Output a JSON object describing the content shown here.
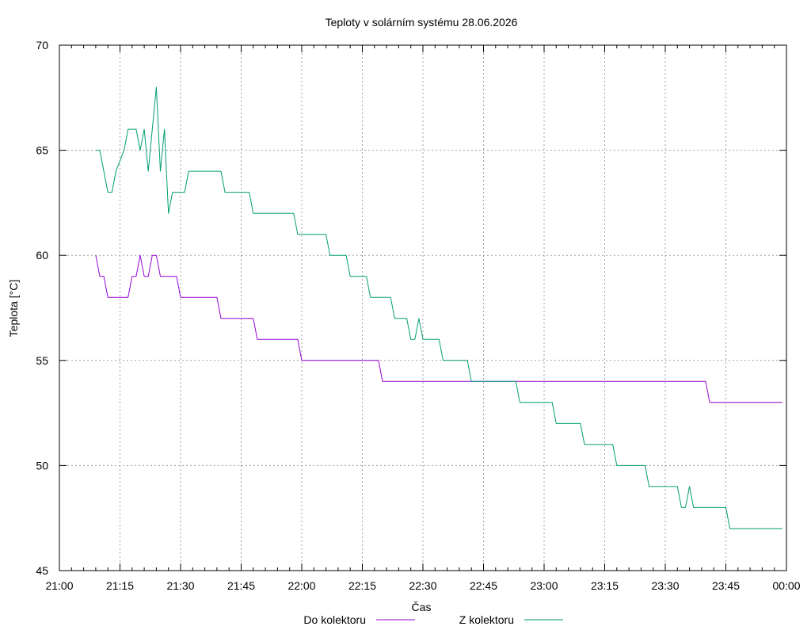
{
  "chart_data": {
    "type": "line",
    "title": "Teploty v solárním systému 28.06.2026",
    "xlabel": "Čas",
    "ylabel": "Teplota [°C]",
    "xlim": [
      "21:00",
      "00:00"
    ],
    "ylim": [
      45,
      70
    ],
    "grid": true,
    "legend_position": "bottom",
    "x_ticks": [
      "21:00",
      "21:15",
      "21:30",
      "21:45",
      "22:00",
      "22:15",
      "22:30",
      "22:45",
      "23:00",
      "23:15",
      "23:30",
      "23:45",
      "00:00"
    ],
    "y_ticks": [
      "45",
      "50",
      "55",
      "60",
      "65",
      "70"
    ],
    "series": [
      {
        "name": "Do kolektoru",
        "color": "#9400d3",
        "points": [
          [
            "21:09",
            60
          ],
          [
            "21:10",
            59
          ],
          [
            "21:11",
            59
          ],
          [
            "21:12",
            58
          ],
          [
            "21:17",
            58
          ],
          [
            "21:18",
            59
          ],
          [
            "21:19",
            59
          ],
          [
            "21:20",
            60
          ],
          [
            "21:21",
            59
          ],
          [
            "21:22",
            59
          ],
          [
            "21:23",
            60
          ],
          [
            "21:24",
            60
          ],
          [
            "21:25",
            59
          ],
          [
            "21:29",
            59
          ],
          [
            "21:30",
            58
          ],
          [
            "21:39",
            58
          ],
          [
            "21:40",
            57
          ],
          [
            "21:48",
            57
          ],
          [
            "21:49",
            56
          ],
          [
            "21:59",
            56
          ],
          [
            "22:00",
            55
          ],
          [
            "22:19",
            55
          ],
          [
            "22:20",
            54
          ],
          [
            "23:40",
            54
          ],
          [
            "23:41",
            53
          ],
          [
            "23:59",
            53
          ]
        ]
      },
      {
        "name": "Z kolektoru",
        "color": "#009e73",
        "points": [
          [
            "21:09",
            65
          ],
          [
            "21:10",
            65
          ],
          [
            "21:12",
            63
          ],
          [
            "21:13",
            63
          ],
          [
            "21:14",
            64
          ],
          [
            "21:16",
            65
          ],
          [
            "21:17",
            66
          ],
          [
            "21:19",
            66
          ],
          [
            "21:20",
            65
          ],
          [
            "21:21",
            66
          ],
          [
            "21:22",
            64
          ],
          [
            "21:24",
            68
          ],
          [
            "21:25",
            64
          ],
          [
            "21:26",
            66
          ],
          [
            "21:27",
            62
          ],
          [
            "21:28",
            63
          ],
          [
            "21:31",
            63
          ],
          [
            "21:32",
            64
          ],
          [
            "21:40",
            64
          ],
          [
            "21:41",
            63
          ],
          [
            "21:47",
            63
          ],
          [
            "21:48",
            62
          ],
          [
            "21:58",
            62
          ],
          [
            "21:59",
            61
          ],
          [
            "22:06",
            61
          ],
          [
            "22:07",
            60
          ],
          [
            "22:11",
            60
          ],
          [
            "22:12",
            59
          ],
          [
            "22:16",
            59
          ],
          [
            "22:17",
            58
          ],
          [
            "22:22",
            58
          ],
          [
            "22:23",
            57
          ],
          [
            "22:26",
            57
          ],
          [
            "22:27",
            56
          ],
          [
            "22:28",
            56
          ],
          [
            "22:29",
            57
          ],
          [
            "22:30",
            56
          ],
          [
            "22:34",
            56
          ],
          [
            "22:35",
            55
          ],
          [
            "22:41",
            55
          ],
          [
            "22:42",
            54
          ],
          [
            "22:53",
            54
          ],
          [
            "22:54",
            53
          ],
          [
            "23:02",
            53
          ],
          [
            "23:03",
            52
          ],
          [
            "23:09",
            52
          ],
          [
            "23:10",
            51
          ],
          [
            "23:17",
            51
          ],
          [
            "23:18",
            50
          ],
          [
            "23:25",
            50
          ],
          [
            "23:26",
            49
          ],
          [
            "23:33",
            49
          ],
          [
            "23:34",
            48
          ],
          [
            "23:35",
            48
          ],
          [
            "23:36",
            49
          ],
          [
            "23:37",
            48
          ],
          [
            "23:45",
            48
          ],
          [
            "23:46",
            47
          ],
          [
            "23:59",
            47
          ]
        ]
      }
    ]
  }
}
